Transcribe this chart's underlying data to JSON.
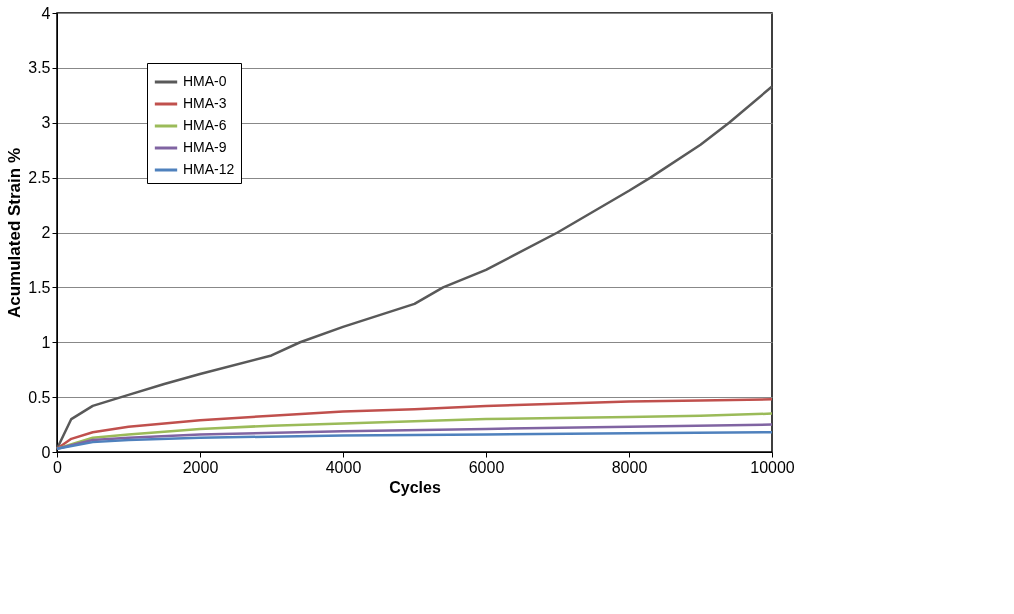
{
  "chart_data": {
    "type": "line",
    "xlabel": "Cycles",
    "ylabel": "Acumulated Strain %",
    "xlim": [
      0,
      10000
    ],
    "xticks": [
      0,
      2000,
      4000,
      6000,
      8000,
      10000
    ],
    "ylim": [
      0,
      4
    ],
    "yticks": [
      0,
      0.5,
      1,
      1.5,
      2,
      2.5,
      3,
      3.5,
      4
    ],
    "grid": "y",
    "legend": "top left",
    "marker": "none",
    "line_style": "solid",
    "series": [
      {
        "name": "HMA-0",
        "color": "#595959",
        "x": [
          0,
          200,
          500,
          1000,
          1500,
          2000,
          3000,
          3400,
          4000,
          5000,
          5400,
          6000,
          7000,
          8000,
          8300,
          9000,
          9400,
          10000
        ],
        "values": [
          0.03,
          0.3,
          0.42,
          0.52,
          0.62,
          0.71,
          0.88,
          1.0,
          1.14,
          1.35,
          1.5,
          1.66,
          2.0,
          2.38,
          2.5,
          2.8,
          3.0,
          3.33
        ]
      },
      {
        "name": "HMA-3",
        "color": "#c0504d",
        "x": [
          0,
          200,
          500,
          1000,
          2000,
          3000,
          4000,
          5000,
          6000,
          7000,
          8000,
          9000,
          10000
        ],
        "values": [
          0.03,
          0.12,
          0.18,
          0.23,
          0.29,
          0.33,
          0.37,
          0.39,
          0.42,
          0.44,
          0.46,
          0.47,
          0.48
        ]
      },
      {
        "name": "HMA-6",
        "color": "#9bbb59",
        "x": [
          0,
          500,
          1000,
          2000,
          3000,
          4000,
          5000,
          6000,
          7000,
          8000,
          9000,
          10000
        ],
        "values": [
          0.03,
          0.13,
          0.16,
          0.21,
          0.24,
          0.26,
          0.28,
          0.3,
          0.31,
          0.32,
          0.33,
          0.35
        ]
      },
      {
        "name": "HMA-9",
        "color": "#8064a2",
        "x": [
          0,
          500,
          1000,
          2000,
          4000,
          6000,
          8000,
          10000
        ],
        "values": [
          0.03,
          0.11,
          0.13,
          0.16,
          0.19,
          0.21,
          0.23,
          0.25
        ]
      },
      {
        "name": "HMA-12",
        "color": "#4f81bd",
        "x": [
          0,
          500,
          1000,
          2000,
          4000,
          6000,
          8000,
          10000
        ],
        "values": [
          0.03,
          0.09,
          0.11,
          0.13,
          0.15,
          0.16,
          0.17,
          0.18
        ]
      }
    ]
  }
}
